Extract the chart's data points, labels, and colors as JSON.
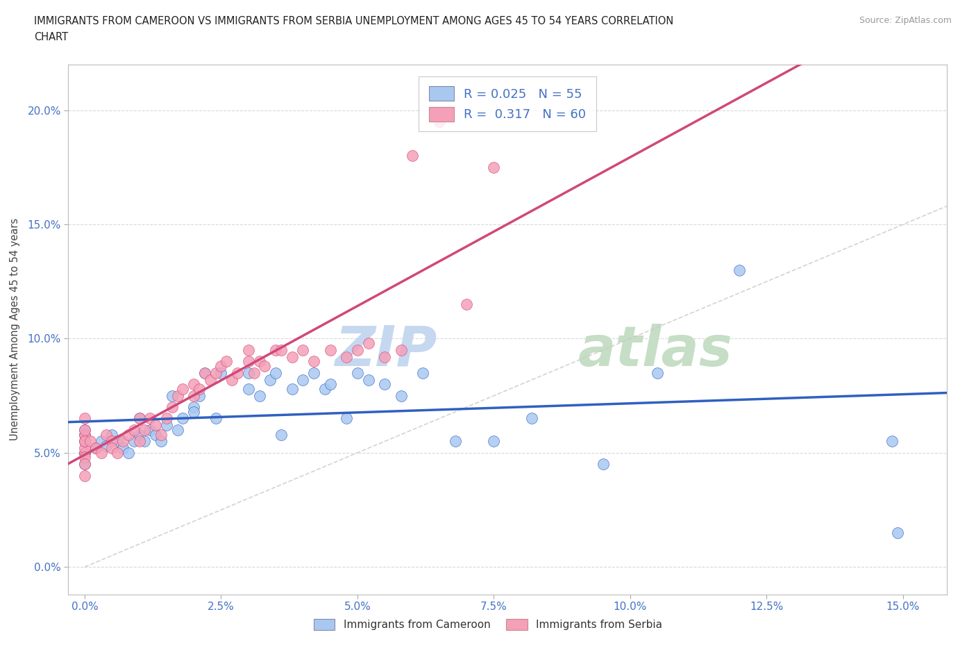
{
  "title": "IMMIGRANTS FROM CAMEROON VS IMMIGRANTS FROM SERBIA UNEMPLOYMENT AMONG AGES 45 TO 54 YEARS CORRELATION\nCHART",
  "source": "Source: ZipAtlas.com",
  "xlabel_vals": [
    0.0,
    2.5,
    5.0,
    7.5,
    10.0,
    12.5,
    15.0
  ],
  "ylabel_vals": [
    0.0,
    5.0,
    10.0,
    15.0,
    20.0
  ],
  "xlim": [
    -0.3,
    15.8
  ],
  "ylim": [
    -1.2,
    22.0
  ],
  "ylabel": "Unemployment Among Ages 45 to 54 years",
  "legend_r1": "R = 0.025   N = 55",
  "legend_r2": "R =  0.317   N = 60",
  "color_blue": "#A8C8F0",
  "color_pink": "#F4A0B8",
  "line_blue": "#3060C0",
  "line_pink": "#D04878",
  "cameroon_x": [
    0.0,
    0.0,
    0.0,
    0.0,
    0.0,
    0.0,
    0.2,
    0.3,
    0.4,
    0.5,
    0.6,
    0.7,
    0.8,
    0.9,
    1.0,
    1.0,
    1.1,
    1.2,
    1.3,
    1.4,
    1.5,
    1.6,
    1.7,
    1.8,
    2.0,
    2.0,
    2.1,
    2.2,
    2.4,
    2.5,
    3.0,
    3.0,
    3.2,
    3.4,
    3.5,
    3.6,
    3.8,
    4.0,
    4.2,
    4.4,
    4.5,
    4.8,
    5.0,
    5.2,
    5.5,
    5.8,
    6.2,
    6.8,
    7.5,
    8.2,
    9.5,
    10.5,
    12.0,
    14.8,
    14.9
  ],
  "cameroon_y": [
    5.0,
    5.0,
    5.5,
    5.8,
    6.0,
    4.5,
    5.2,
    5.5,
    5.3,
    5.8,
    5.5,
    5.2,
    5.0,
    5.5,
    5.8,
    6.5,
    5.5,
    6.0,
    5.8,
    5.5,
    6.2,
    7.5,
    6.0,
    6.5,
    7.0,
    6.8,
    7.5,
    8.5,
    6.5,
    8.5,
    8.5,
    7.8,
    7.5,
    8.2,
    8.5,
    5.8,
    7.8,
    8.2,
    8.5,
    7.8,
    8.0,
    6.5,
    8.5,
    8.2,
    8.0,
    7.5,
    8.5,
    5.5,
    5.5,
    6.5,
    4.5,
    8.5,
    13.0,
    5.5,
    1.5
  ],
  "serbia_x": [
    0.0,
    0.0,
    0.0,
    0.0,
    0.0,
    0.0,
    0.0,
    0.0,
    0.0,
    0.0,
    0.1,
    0.2,
    0.3,
    0.4,
    0.5,
    0.5,
    0.6,
    0.7,
    0.8,
    0.9,
    1.0,
    1.0,
    1.1,
    1.2,
    1.3,
    1.4,
    1.5,
    1.6,
    1.7,
    1.8,
    2.0,
    2.0,
    2.1,
    2.2,
    2.3,
    2.4,
    2.5,
    2.6,
    2.7,
    2.8,
    3.0,
    3.0,
    3.1,
    3.2,
    3.3,
    3.5,
    3.6,
    3.8,
    4.0,
    4.2,
    4.5,
    4.8,
    5.0,
    5.2,
    5.5,
    5.8,
    6.0,
    6.5,
    7.0,
    7.5
  ],
  "serbia_y": [
    5.0,
    5.2,
    4.8,
    5.5,
    5.8,
    6.0,
    6.5,
    4.5,
    4.0,
    5.5,
    5.5,
    5.2,
    5.0,
    5.8,
    5.5,
    5.2,
    5.0,
    5.5,
    5.8,
    6.0,
    6.5,
    5.5,
    6.0,
    6.5,
    6.2,
    5.8,
    6.5,
    7.0,
    7.5,
    7.8,
    8.0,
    7.5,
    7.8,
    8.5,
    8.2,
    8.5,
    8.8,
    9.0,
    8.2,
    8.5,
    9.0,
    9.5,
    8.5,
    9.0,
    8.8,
    9.5,
    9.5,
    9.2,
    9.5,
    9.0,
    9.5,
    9.2,
    9.5,
    9.8,
    9.2,
    9.5,
    18.0,
    19.5,
    11.5,
    17.5
  ]
}
